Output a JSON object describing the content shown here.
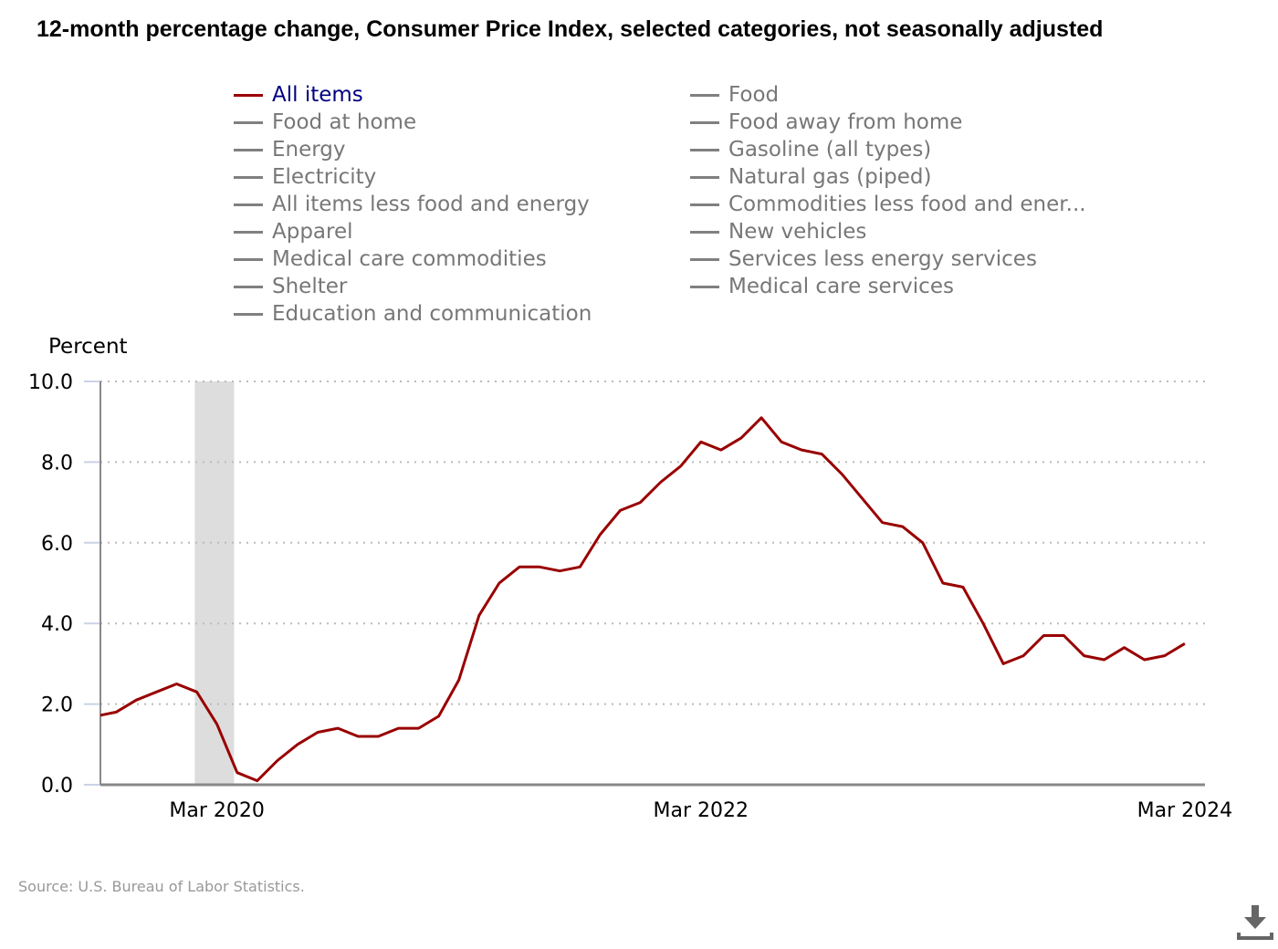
{
  "title": "12-month percentage change, Consumer Price Index, selected categories, not seasonally adjusted",
  "legend": {
    "columns": [
      [
        {
          "label": "All items",
          "active": true
        },
        {
          "label": "Food at home",
          "active": false
        },
        {
          "label": "Energy",
          "active": false
        },
        {
          "label": "Electricity",
          "active": false
        },
        {
          "label": "All items less food and energy",
          "active": false
        },
        {
          "label": "Apparel",
          "active": false
        },
        {
          "label": "Medical care commodities",
          "active": false
        },
        {
          "label": "Shelter",
          "active": false
        },
        {
          "label": "Education and communication",
          "active": false
        }
      ],
      [
        {
          "label": "Food",
          "active": false
        },
        {
          "label": "Food away from home",
          "active": false
        },
        {
          "label": "Gasoline (all types)",
          "active": false
        },
        {
          "label": "Natural gas (piped)",
          "active": false
        },
        {
          "label": "Commodities less food and ener...",
          "active": false
        },
        {
          "label": "New vehicles",
          "active": false
        },
        {
          "label": "Services less energy services",
          "active": false
        },
        {
          "label": "Medical care services",
          "active": false
        }
      ]
    ]
  },
  "source": "Source: U.S. Bureau of Labor Statistics.",
  "download_icon": "download-icon",
  "colors": {
    "active_series": "#990000",
    "active_legend_text": "#000080",
    "inactive": "#808080",
    "recession_band": "#dddddd"
  },
  "chart_data": {
    "type": "line",
    "title": "12-month percentage change, Consumer Price Index, selected categories, not seasonally adjusted",
    "xlabel": "",
    "ylabel": "Percent",
    "ylim": [
      0,
      10
    ],
    "yticks": [
      "0.0",
      "2.0",
      "4.0",
      "6.0",
      "8.0",
      "10.0"
    ],
    "ytick_values": [
      0,
      2,
      4,
      6,
      8,
      10
    ],
    "xticks": [
      {
        "label": "Mar 2020",
        "index": 5
      },
      {
        "label": "Mar 2022",
        "index": 29
      },
      {
        "label": "Mar 2024",
        "index": 53
      }
    ],
    "x_domain_months": [
      -0.78,
      54.0
    ],
    "grid": true,
    "legend_placement": "top",
    "recession": {
      "start": "Feb 2020",
      "end": "Apr 2020",
      "start_index": 3.9,
      "end_index": 5.85
    },
    "x": [
      "Sep 2019",
      "Oct 2019",
      "Nov 2019",
      "Dec 2019",
      "Jan 2020",
      "Feb 2020",
      "Mar 2020",
      "Apr 2020",
      "May 2020",
      "Jun 2020",
      "Jul 2020",
      "Aug 2020",
      "Sep 2020",
      "Oct 2020",
      "Nov 2020",
      "Dec 2020",
      "Jan 2021",
      "Feb 2021",
      "Mar 2021",
      "Apr 2021",
      "May 2021",
      "Jun 2021",
      "Jul 2021",
      "Aug 2021",
      "Sep 2021",
      "Oct 2021",
      "Nov 2021",
      "Dec 2021",
      "Jan 2022",
      "Feb 2022",
      "Mar 2022",
      "Apr 2022",
      "May 2022",
      "Jun 2022",
      "Jul 2022",
      "Aug 2022",
      "Sep 2022",
      "Oct 2022",
      "Nov 2022",
      "Dec 2022",
      "Jan 2023",
      "Feb 2023",
      "Mar 2023",
      "Apr 2023",
      "May 2023",
      "Jun 2023",
      "Jul 2023",
      "Aug 2023",
      "Sep 2023",
      "Oct 2023",
      "Nov 2023",
      "Dec 2023",
      "Jan 2024",
      "Feb 2024",
      "Mar 2024"
    ],
    "series": [
      {
        "name": "All items",
        "values": [
          1.7,
          1.8,
          2.1,
          2.3,
          2.5,
          2.3,
          1.5,
          0.3,
          0.1,
          0.6,
          1.0,
          1.3,
          1.4,
          1.2,
          1.2,
          1.4,
          1.4,
          1.7,
          2.6,
          4.2,
          5.0,
          5.4,
          5.4,
          5.3,
          5.4,
          6.2,
          6.8,
          7.0,
          7.5,
          7.9,
          8.5,
          8.3,
          8.6,
          9.1,
          8.5,
          8.3,
          8.2,
          7.7,
          7.1,
          6.5,
          6.4,
          6.0,
          5.0,
          4.9,
          4.0,
          3.0,
          3.2,
          3.7,
          3.7,
          3.2,
          3.1,
          3.4,
          3.1,
          3.2,
          3.5
        ]
      }
    ]
  }
}
